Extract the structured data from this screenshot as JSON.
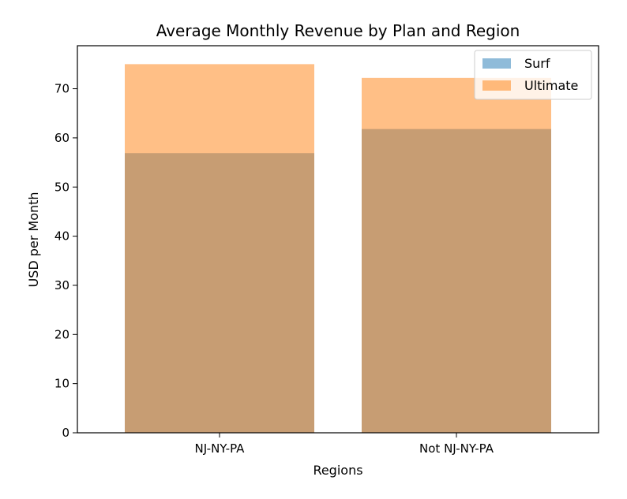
{
  "chart_data": {
    "type": "bar",
    "title": "Average Monthly Revenue by Plan and Region",
    "xlabel": "Regions",
    "ylabel": "USD per Month",
    "categories": [
      "NJ-NY-PA",
      "Not NJ-NY-PA"
    ],
    "series": [
      {
        "name": "Surf",
        "values": [
          56.9,
          61.8
        ],
        "color": "#1f77b4",
        "opacity": 0.5
      },
      {
        "name": "Ultimate",
        "values": [
          75.0,
          72.2
        ],
        "color": "#ff7f0e",
        "opacity": 0.5
      }
    ],
    "ylim": [
      0,
      78.75
    ],
    "yticks": [
      0,
      10,
      20,
      30,
      40,
      50,
      60,
      70
    ],
    "grid": false,
    "legend_position": "top-right",
    "overlay": true
  }
}
